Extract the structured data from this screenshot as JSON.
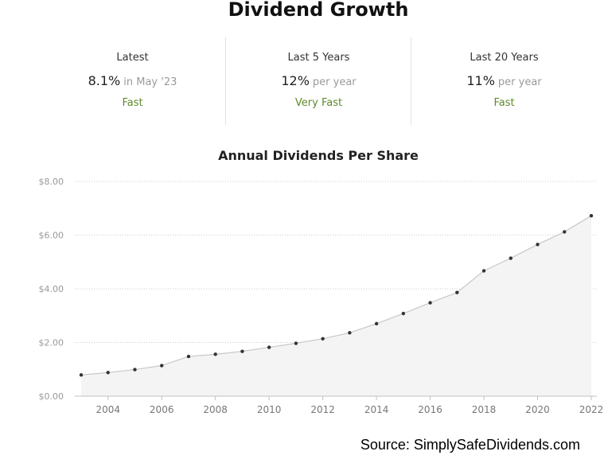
{
  "header": {
    "title": "Dividend Growth"
  },
  "stats": [
    {
      "label": "Latest",
      "value": "8.1%",
      "suffix": "in May '23",
      "rating": "Fast"
    },
    {
      "label": "Last 5 Years",
      "value": "12%",
      "suffix": "per year",
      "rating": "Very Fast"
    },
    {
      "label": "Last 20 Years",
      "value": "11%",
      "suffix": "per year",
      "rating": "Fast"
    }
  ],
  "source": "Source: SimplySafeDividends.com",
  "colors": {
    "rating": "#5e8a2c",
    "line": "#c8c8c8",
    "fill": "#f4f4f4",
    "point": "#333333",
    "grid": "#cccccc"
  },
  "chart_data": {
    "type": "area",
    "title": "Annual Dividends Per Share",
    "xlabel": "",
    "ylabel": "",
    "x": [
      2003,
      2004,
      2005,
      2006,
      2007,
      2008,
      2009,
      2010,
      2011,
      2012,
      2013,
      2014,
      2015,
      2016,
      2017,
      2018,
      2019,
      2020,
      2021,
      2022
    ],
    "values": [
      0.79,
      0.88,
      0.99,
      1.14,
      1.48,
      1.56,
      1.67,
      1.82,
      1.97,
      2.14,
      2.36,
      2.7,
      3.08,
      3.48,
      3.86,
      4.67,
      5.14,
      5.65,
      6.12,
      6.72
    ],
    "xticks": [
      "2004",
      "2006",
      "2008",
      "2010",
      "2012",
      "2014",
      "2016",
      "2018",
      "2020",
      "2022"
    ],
    "yticks": [
      "$0.00",
      "$2.00",
      "$4.00",
      "$6.00",
      "$8.00"
    ],
    "ytick_values": [
      0,
      2,
      4,
      6,
      8
    ],
    "ylim": [
      0,
      8
    ],
    "xlim": [
      2003,
      2022
    ],
    "grid": true
  }
}
